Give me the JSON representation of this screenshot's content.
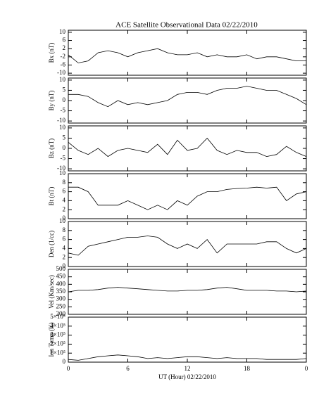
{
  "chart_data": [
    {
      "type": "line",
      "title": "ACE Satellite Observational Data   02/22/2010",
      "ylabel": "Bx (nT)",
      "color": "#000000",
      "x": [
        0,
        1,
        2,
        3,
        4,
        5,
        6,
        7,
        8,
        9,
        10,
        11,
        12,
        13,
        14,
        15,
        16,
        17,
        18,
        19,
        20,
        21,
        22,
        23,
        24
      ],
      "values": [
        -1,
        -5,
        -4,
        0,
        1,
        0,
        -2,
        0,
        1,
        2,
        0,
        -1,
        -1,
        0,
        -2,
        -1,
        -2,
        -2,
        -1,
        -3,
        -2,
        -2,
        -3,
        -4,
        -4
      ],
      "xlim": [
        0,
        24
      ],
      "ylim": [
        -11,
        11
      ],
      "yticks": [
        10,
        6,
        2,
        -2,
        -6,
        -10
      ]
    },
    {
      "type": "line",
      "ylabel": "By (nT)",
      "color": "#000000",
      "x": [
        0,
        1,
        2,
        3,
        4,
        5,
        6,
        7,
        8,
        9,
        10,
        11,
        12,
        13,
        14,
        15,
        16,
        17,
        18,
        19,
        20,
        21,
        22,
        23,
        24
      ],
      "values": [
        3,
        3,
        2,
        -1,
        -3,
        0,
        -2,
        -1,
        -2,
        -1,
        0,
        3,
        4,
        4,
        3,
        5,
        6,
        6,
        7,
        6,
        5,
        5,
        3,
        1,
        -2
      ],
      "xlim": [
        0,
        24
      ],
      "ylim": [
        -11,
        11
      ],
      "yticks": [
        10,
        5,
        0,
        -5,
        -10
      ]
    },
    {
      "type": "line",
      "ylabel": "Bz (nT)",
      "color": "#000000",
      "x": [
        0,
        1,
        2,
        3,
        4,
        5,
        6,
        7,
        8,
        9,
        10,
        11,
        12,
        13,
        14,
        15,
        16,
        17,
        18,
        19,
        20,
        21,
        22,
        23,
        24
      ],
      "values": [
        3,
        -1,
        -3,
        0,
        -4,
        -1,
        0,
        -1,
        -2,
        2,
        -3,
        4,
        -1,
        0,
        5,
        -1,
        -3,
        -1,
        -2,
        -2,
        -4,
        -3,
        1,
        -2,
        -4
      ],
      "xlim": [
        0,
        24
      ],
      "ylim": [
        -11,
        11
      ],
      "yticks": [
        10,
        5,
        0,
        -5,
        -10
      ]
    },
    {
      "type": "line",
      "ylabel": "Bt (nT)",
      "color": "#000000",
      "x": [
        0,
        1,
        2,
        3,
        4,
        5,
        6,
        7,
        8,
        9,
        10,
        11,
        12,
        13,
        14,
        15,
        16,
        17,
        18,
        19,
        20,
        21,
        22,
        23,
        24
      ],
      "values": [
        7,
        7,
        6,
        3,
        3,
        3,
        4,
        3,
        2,
        3,
        2,
        4,
        3,
        5,
        6,
        6,
        6.5,
        6.7,
        6.8,
        7,
        6.8,
        7,
        4,
        5.5,
        6
      ],
      "xlim": [
        0,
        24
      ],
      "ylim": [
        0,
        10
      ],
      "yticks": [
        10,
        8,
        6,
        4,
        2,
        0
      ]
    },
    {
      "type": "line",
      "ylabel": "Den (1/cc)",
      "color": "#000000",
      "x": [
        0,
        1,
        2,
        3,
        4,
        5,
        6,
        7,
        8,
        9,
        10,
        11,
        12,
        13,
        14,
        15,
        16,
        17,
        18,
        19,
        20,
        21,
        22,
        23,
        24
      ],
      "values": [
        3,
        2.5,
        4.5,
        5,
        5.5,
        6,
        6.5,
        6.5,
        6.8,
        6.5,
        5,
        4,
        5,
        4,
        6,
        3,
        5,
        5,
        5,
        5,
        5.5,
        5.5,
        4,
        3,
        4
      ],
      "xlim": [
        0,
        24
      ],
      "ylim": [
        0,
        10
      ],
      "yticks": [
        10,
        8,
        6,
        4,
        2,
        0
      ]
    },
    {
      "type": "line",
      "ylabel": "Vel (Km/sec)",
      "color": "#000000",
      "x": [
        0,
        1,
        2,
        3,
        4,
        5,
        6,
        7,
        8,
        9,
        10,
        11,
        12,
        13,
        14,
        15,
        16,
        17,
        18,
        19,
        20,
        21,
        22,
        23,
        24
      ],
      "values": [
        350,
        360,
        360,
        365,
        375,
        380,
        375,
        370,
        365,
        360,
        355,
        355,
        360,
        360,
        365,
        375,
        380,
        370,
        360,
        360,
        360,
        355,
        355,
        350,
        355
      ],
      "xlim": [
        0,
        24
      ],
      "ylim": [
        200,
        500
      ],
      "yticks": [
        500,
        450,
        400,
        350,
        300,
        250,
        200
      ]
    },
    {
      "type": "line",
      "ylabel": "Ion Temp (K)",
      "xlabel": "UT (Hour)  02/22/2010",
      "color": "#000000",
      "x": [
        0,
        1,
        2,
        3,
        4,
        5,
        6,
        7,
        8,
        9,
        10,
        11,
        12,
        13,
        14,
        15,
        16,
        17,
        18,
        19,
        20,
        21,
        22,
        23,
        24
      ],
      "values": [
        30000,
        20000,
        40000,
        60000,
        70000,
        80000,
        70000,
        60000,
        40000,
        50000,
        40000,
        50000,
        60000,
        60000,
        50000,
        40000,
        50000,
        40000,
        40000,
        40000,
        30000,
        30000,
        30000,
        30000,
        40000
      ],
      "xlim": [
        0,
        24
      ],
      "ylim": [
        0,
        500000
      ],
      "yticks": [
        {
          "value": 500000,
          "label": "5×10⁵"
        },
        {
          "value": 400000,
          "label": "4×10⁵"
        },
        {
          "value": 300000,
          "label": "3×10⁵"
        },
        {
          "value": 200000,
          "label": "2×10⁵"
        },
        {
          "value": 100000,
          "label": "1×10⁵"
        },
        0
      ],
      "xticks": [
        0,
        6,
        12,
        18,
        {
          "value": 24,
          "label": "0"
        }
      ]
    }
  ]
}
